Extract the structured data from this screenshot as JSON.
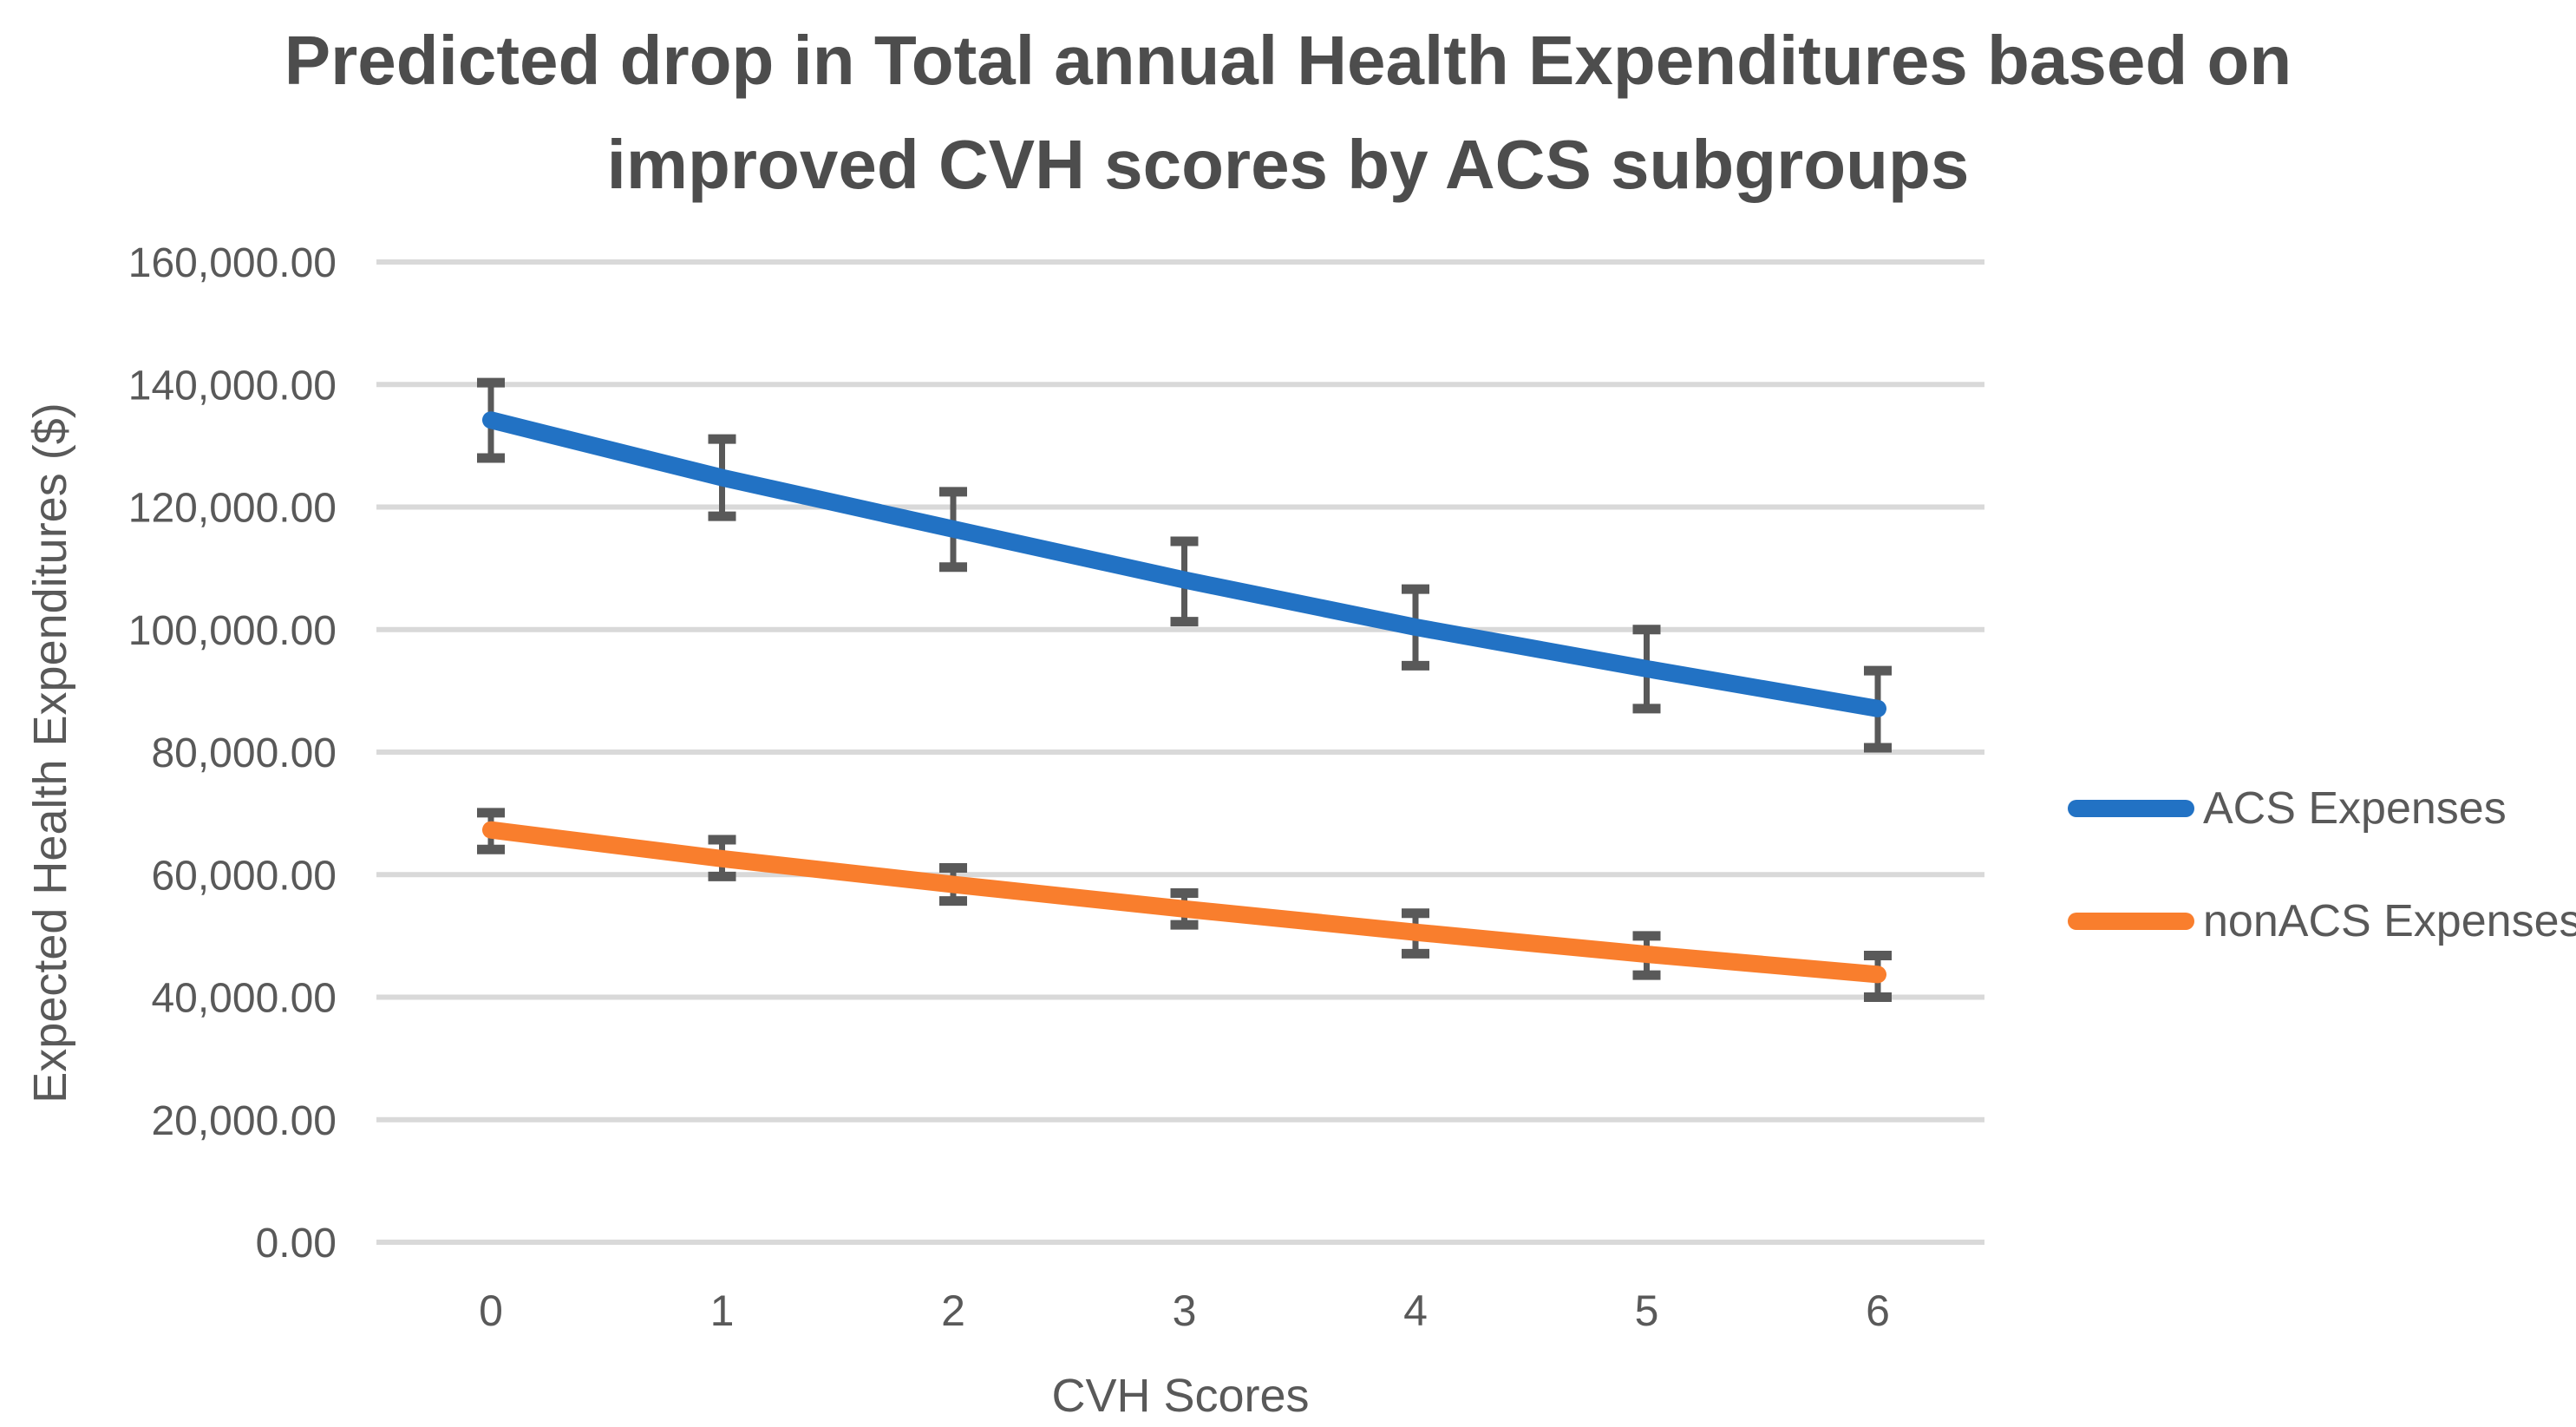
{
  "chart_data": {
    "type": "line",
    "title": "Predicted drop in Total annual Health Expenditures based on\nimproved CVH scores by ACS subgroups",
    "xlabel": "CVH Scores",
    "ylabel": "Expected Health Expenditures ($)",
    "x": [
      0,
      1,
      2,
      3,
      4,
      5,
      6
    ],
    "x_tick_labels": [
      "0",
      "1",
      "2",
      "3",
      "4",
      "5",
      "6"
    ],
    "ylim": [
      0,
      160000
    ],
    "y_ticks": [
      0,
      20000,
      40000,
      60000,
      80000,
      100000,
      120000,
      140000,
      160000
    ],
    "y_tick_labels": [
      "0.00",
      "20,000.00",
      "40,000.00",
      "60,000.00",
      "80,000.00",
      "100,000.00",
      "120,000.00",
      "140,000.00",
      "160,000.00"
    ],
    "grid": "horizontal",
    "legend_position": "right",
    "series": [
      {
        "name": "ACS Expenses",
        "color": "#2272C4",
        "values": [
          134200,
          124800,
          116400,
          108100,
          100400,
          93600,
          87100
        ],
        "error_low": [
          128000,
          118500,
          110200,
          101300,
          94100,
          87100,
          80700
        ],
        "error_high": [
          140300,
          131100,
          122500,
          114400,
          106600,
          100000,
          93300
        ]
      },
      {
        "name": "nonACS Expenses",
        "color": "#F97E2D",
        "values": [
          67300,
          62600,
          58400,
          54400,
          50600,
          47000,
          43700
        ],
        "error_low": [
          64100,
          59700,
          55700,
          51800,
          47100,
          43600,
          40000
        ],
        "error_high": [
          70100,
          65700,
          61100,
          57000,
          53700,
          50000,
          46800
        ]
      }
    ],
    "colors": {
      "gridline": "#D9D9D9",
      "error_bar": "#595959",
      "tick_text": "#595959",
      "title_text": "#4D4D4D"
    }
  }
}
